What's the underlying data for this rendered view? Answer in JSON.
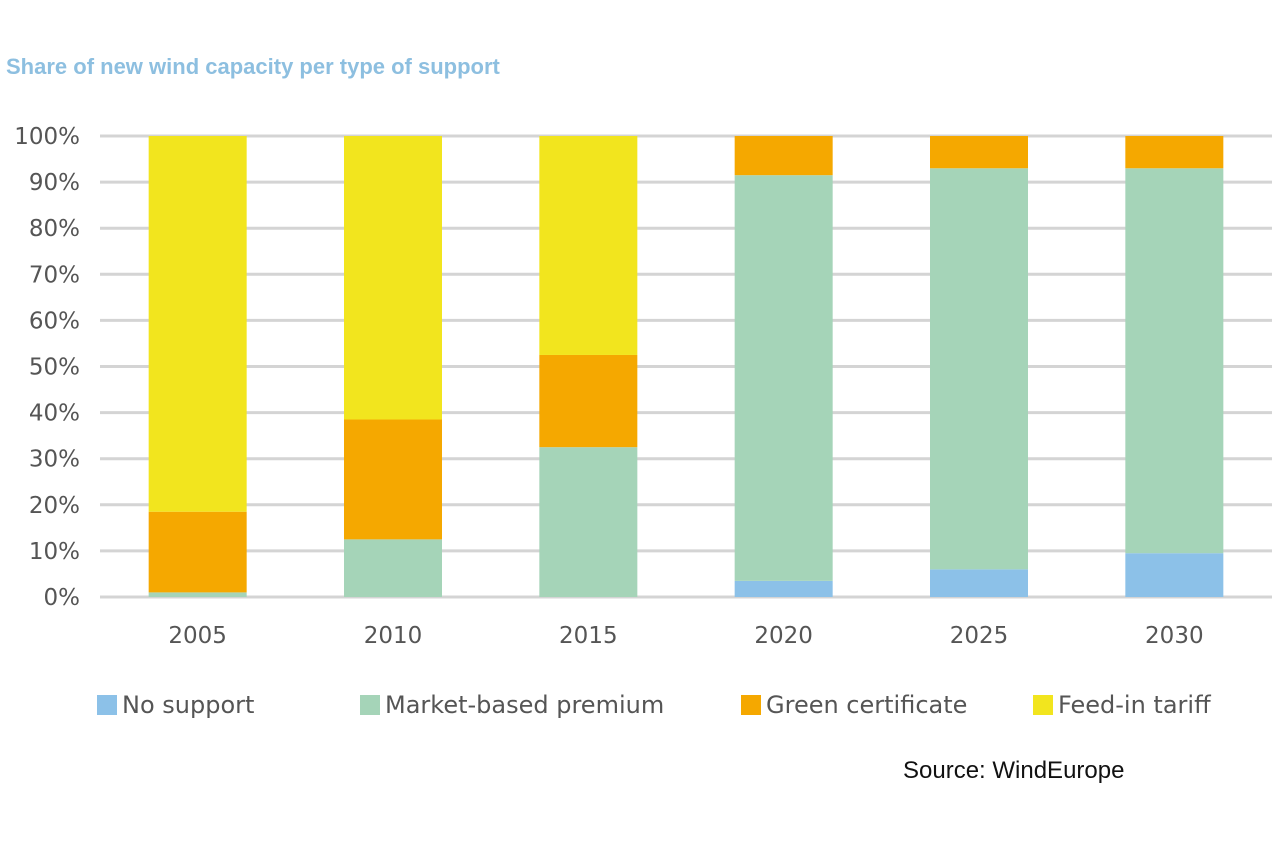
{
  "chart_data": {
    "type": "bar",
    "stacked": true,
    "title": "Share of new wind capacity per type of support",
    "categories": [
      "2005",
      "2010",
      "2015",
      "2020",
      "2025",
      "2030"
    ],
    "series": [
      {
        "name": "No support",
        "color": "#8cc1e8",
        "values": [
          0,
          0,
          0,
          3.5,
          6,
          9.5
        ]
      },
      {
        "name": "Market-based premium",
        "color": "#a5d4b8",
        "values": [
          1,
          12.5,
          32.5,
          88,
          87,
          83.5
        ]
      },
      {
        "name": "Green certificate",
        "color": "#f5a800",
        "values": [
          17.5,
          26,
          20,
          8.5,
          7,
          7
        ]
      },
      {
        "name": "Feed-in tariff",
        "color": "#f2e51e",
        "values": [
          81.5,
          61.5,
          47.5,
          0,
          0,
          0
        ]
      }
    ],
    "ylim": [
      0,
      100
    ],
    "yticks": [
      "0%",
      "10%",
      "20%",
      "30%",
      "40%",
      "50%",
      "60%",
      "70%",
      "80%",
      "90%",
      "100%"
    ],
    "grid": true,
    "legend_position": "bottom",
    "xlabel": "",
    "ylabel": ""
  },
  "source": "Source: WindEurope"
}
